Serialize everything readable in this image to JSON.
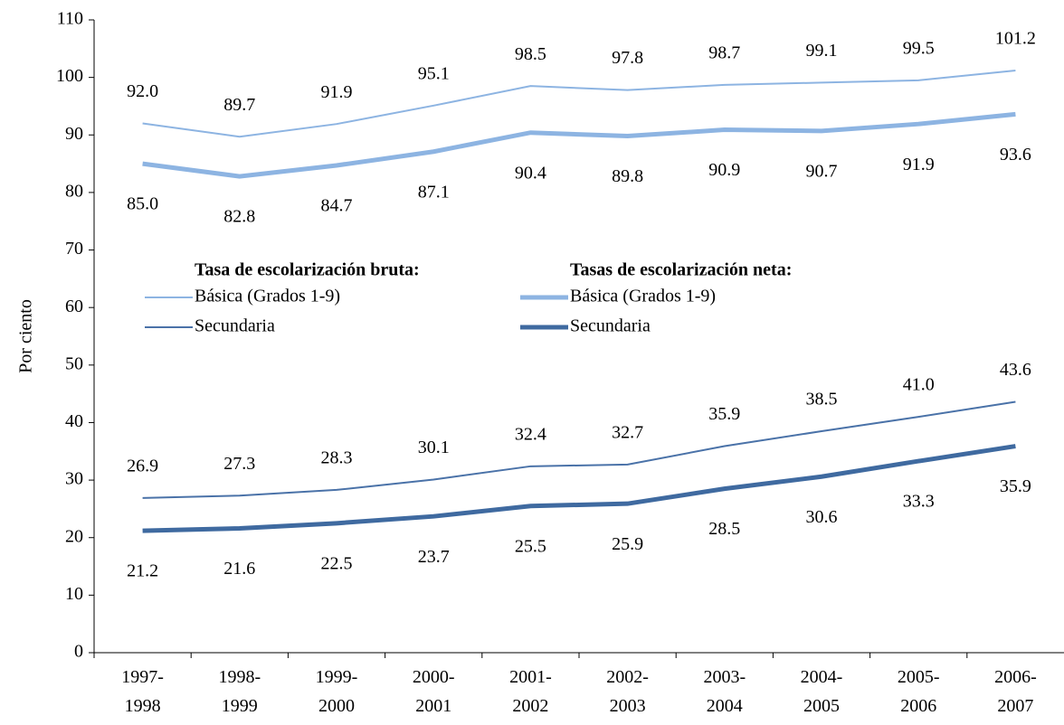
{
  "chart_data": {
    "type": "line",
    "y_label": "Por ciento",
    "categories": [
      "1997-\n1998",
      "1998-\n1999",
      "1999-\n2000",
      "2000-\n2001",
      "2001-\n2002",
      "2002-\n2003",
      "2003-\n2004",
      "2004-\n2005",
      "2005-\n2006",
      "2006-\n2007"
    ],
    "legend_titles": [
      "Tasa de escolarización bruta:",
      "Tasas de escolarización neta:"
    ],
    "series": [
      {
        "name": "Básica (Grados 1-9)",
        "color": "#8db4e2",
        "line_width": 2,
        "label_position": "above",
        "values": [
          92.0,
          89.7,
          91.9,
          95.1,
          98.5,
          97.8,
          98.7,
          99.1,
          99.5,
          101.2
        ],
        "value_labels": [
          "92.0",
          "89.7",
          "91.9",
          "95.1",
          "98.5",
          "97.8",
          "98.7",
          "99.1",
          "99.5",
          "101.2"
        ]
      },
      {
        "name": "Secundaria",
        "color": "#4a72a8",
        "line_width": 2,
        "label_position": "above",
        "values": [
          26.9,
          27.3,
          28.3,
          30.1,
          32.4,
          32.7,
          35.9,
          38.5,
          41.0,
          43.6
        ],
        "value_labels": [
          "26.9",
          "27.3",
          "28.3",
          "30.1",
          "32.4",
          "32.7",
          "35.9",
          "38.5",
          "41.0",
          "43.6"
        ]
      },
      {
        "name": "Básica (Grados 1-9)",
        "color": "#8db4e2",
        "line_width": 5,
        "label_position": "below",
        "values": [
          85.0,
          82.8,
          84.7,
          87.1,
          90.4,
          89.8,
          90.9,
          90.7,
          91.9,
          93.6
        ],
        "value_labels": [
          "85.0",
          "82.8",
          "84.7",
          "87.1",
          "90.4",
          "89.8",
          "90.9",
          "90.7",
          "91.9",
          "93.6"
        ]
      },
      {
        "name": "Secundaria",
        "color": "#3f6aa0",
        "line_width": 5,
        "label_position": "below",
        "values": [
          21.2,
          21.6,
          22.5,
          23.7,
          25.5,
          25.9,
          28.5,
          30.6,
          33.3,
          35.9
        ],
        "value_labels": [
          "21.2",
          "21.6",
          "22.5",
          "23.7",
          "25.5",
          "25.9",
          "28.5",
          "30.6",
          "33.3",
          "35.9"
        ]
      }
    ],
    "ylim": [
      0,
      110
    ],
    "yticks": [
      0,
      10,
      20,
      30,
      40,
      50,
      60,
      70,
      80,
      90,
      100,
      110
    ]
  }
}
